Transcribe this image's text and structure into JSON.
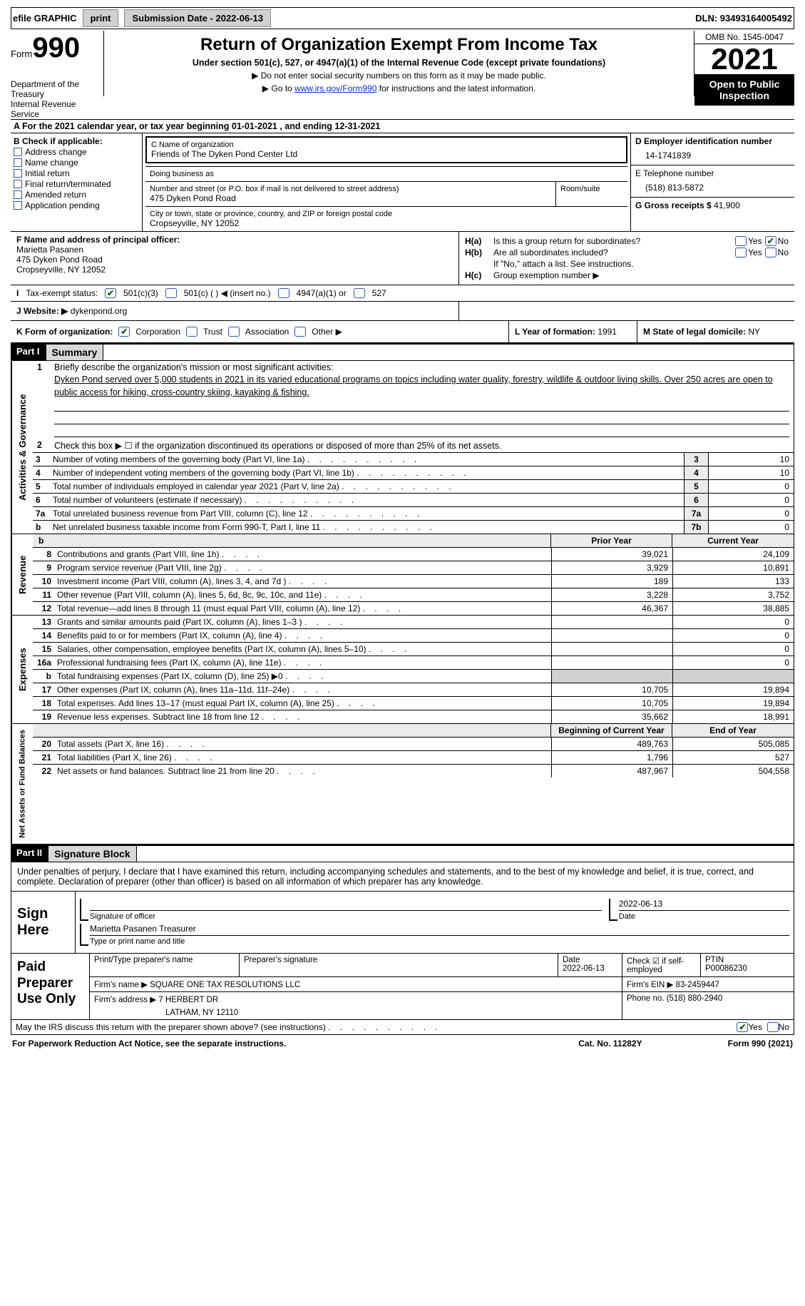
{
  "topbar": {
    "efile": "efile GRAPHIC",
    "print": "print",
    "subdate_label": "Submission Date - 2022-06-13",
    "dln": "DLN: 93493164005492"
  },
  "header": {
    "form_label": "Form",
    "form_num": "990",
    "title": "Return of Organization Exempt From Income Tax",
    "subtitle": "Under section 501(c), 527, or 4947(a)(1) of the Internal Revenue Code (except private foundations)",
    "note1": "▶ Do not enter social security numbers on this form as it may be made public.",
    "note2_pre": "▶ Go to ",
    "note2_link": "www.irs.gov/Form990",
    "note2_post": " for instructions and the latest information.",
    "dept": "Department of the Treasury\nInternal Revenue Service",
    "omb": "OMB No. 1545-0047",
    "year": "2021",
    "open": "Open to Public Inspection"
  },
  "rowA": "A For the 2021 calendar year, or tax year beginning 01-01-2021    , and ending 12-31-2021",
  "boxB": {
    "hdr": "B Check if applicable:",
    "items": [
      "Address change",
      "Name change",
      "Initial return",
      "Final return/terminated",
      "Amended return",
      "Application pending"
    ]
  },
  "boxC": {
    "name_label": "C Name of organization",
    "name": "Friends of The Dyken Pond Center Ltd",
    "dba_label": "Doing business as",
    "dba": "",
    "addr_label": "Number and street (or P.O. box if mail is not delivered to street address)",
    "addr": "475 Dyken Pond Road",
    "room_label": "Room/suite",
    "city_label": "City or town, state or province, country, and ZIP or foreign postal code",
    "city": "Cropseyville, NY  12052"
  },
  "boxD": {
    "label": "D Employer identification number",
    "val": "14-1741839"
  },
  "boxE": {
    "label": "E Telephone number",
    "val": "(518) 813-5872"
  },
  "boxG": {
    "label": "G Gross receipts $",
    "val": "41,900"
  },
  "boxF": {
    "label": "F  Name and address of principal officer:",
    "name": "Marietta Pasanen",
    "addr1": "475 Dyken Pond Road",
    "addr2": "Cropseyville, NY  12052"
  },
  "boxH": {
    "a_lbl": "H(a)",
    "a_txt": "Is this a group return for subordinates?",
    "b_lbl": "H(b)",
    "b_txt": "Are all subordinates included?",
    "b_note": "If \"No,\" attach a list. See instructions.",
    "c_lbl": "H(c)",
    "c_txt": "Group exemption number ▶",
    "yes": "Yes",
    "no": "No"
  },
  "taxI": {
    "label": "I",
    "txt": "Tax-exempt status:",
    "o1": "501(c)(3)",
    "o2": "501(c) (  ) ◀ (insert no.)",
    "o3": "4947(a)(1) or",
    "o4": "527"
  },
  "webJ": {
    "label": "J",
    "txt": "Website: ▶",
    "val": "dykenpond.org"
  },
  "rowK": {
    "label": "K Form of organization:",
    "o1": "Corporation",
    "o2": "Trust",
    "o3": "Association",
    "o4": "Other ▶"
  },
  "rowL": {
    "label": "L Year of formation:",
    "val": "1991"
  },
  "rowM": {
    "label": "M State of legal domicile:",
    "val": "NY"
  },
  "part1": {
    "num": "Part I",
    "title": "Summary"
  },
  "summary": {
    "tab1": "Activities & Governance",
    "l1": {
      "n": "1",
      "d": "Briefly describe the organization's mission or most significant activities:",
      "txt": "Dyken Pond served over 5,000 students in 2021 in its varied educational programs on topics including water quality, forestry, wildlife & outdoor living skills. Over 250 acres are open to public access for hiking, cross-country skiing, kayaking & fishing."
    },
    "l2": {
      "n": "2",
      "d": "Check this box ▶ ☐  if the organization discontinued its operations or disposed of more than 25% of its net assets."
    },
    "grid": [
      {
        "n": "3",
        "d": "Number of voting members of the governing body (Part VI, line 1a)",
        "b": "3",
        "v": "10"
      },
      {
        "n": "4",
        "d": "Number of independent voting members of the governing body (Part VI, line 1b)",
        "b": "4",
        "v": "10"
      },
      {
        "n": "5",
        "d": "Total number of individuals employed in calendar year 2021 (Part V, line 2a)",
        "b": "5",
        "v": "0"
      },
      {
        "n": "6",
        "d": "Total number of volunteers (estimate if necessary)",
        "b": "6",
        "v": "0"
      },
      {
        "n": "7a",
        "d": "Total unrelated business revenue from Part VIII, column (C), line 12",
        "b": "7a",
        "v": "0"
      },
      {
        "n": "b",
        "d": "Net unrelated business taxable income from Form 990-T, Part I, line 11",
        "b": "7b",
        "v": "0"
      }
    ]
  },
  "revenue": {
    "tab": "Revenue",
    "hdr_b": "b",
    "hdr_prior": "Prior Year",
    "hdr_curr": "Current Year",
    "lines": [
      {
        "n": "8",
        "d": "Contributions and grants (Part VIII, line 1h)",
        "p": "39,021",
        "c": "24,109"
      },
      {
        "n": "9",
        "d": "Program service revenue (Part VIII, line 2g)",
        "p": "3,929",
        "c": "10,891"
      },
      {
        "n": "10",
        "d": "Investment income (Part VIII, column (A), lines 3, 4, and 7d )",
        "p": "189",
        "c": "133"
      },
      {
        "n": "11",
        "d": "Other revenue (Part VIII, column (A), lines 5, 6d, 8c, 9c, 10c, and 11e)",
        "p": "3,228",
        "c": "3,752"
      },
      {
        "n": "12",
        "d": "Total revenue—add lines 8 through 11 (must equal Part VIII, column (A), line 12)",
        "p": "46,367",
        "c": "38,885"
      }
    ]
  },
  "expenses": {
    "tab": "Expenses",
    "lines": [
      {
        "n": "13",
        "d": "Grants and similar amounts paid (Part IX, column (A), lines 1–3 )",
        "p": "",
        "c": "0"
      },
      {
        "n": "14",
        "d": "Benefits paid to or for members (Part IX, column (A), line 4)",
        "p": "",
        "c": "0"
      },
      {
        "n": "15",
        "d": "Salaries, other compensation, employee benefits (Part IX, column (A), lines 5–10)",
        "p": "",
        "c": "0"
      },
      {
        "n": "16a",
        "d": "Professional fundraising fees (Part IX, column (A), line 11e)",
        "p": "",
        "c": "0"
      },
      {
        "n": "b",
        "d": "Total fundraising expenses (Part IX, column (D), line 25) ▶0",
        "p": "shade",
        "c": "shade"
      },
      {
        "n": "17",
        "d": "Other expenses (Part IX, column (A), lines 11a–11d, 11f–24e)",
        "p": "10,705",
        "c": "19,894"
      },
      {
        "n": "18",
        "d": "Total expenses. Add lines 13–17 (must equal Part IX, column (A), line 25)",
        "p": "10,705",
        "c": "19,894"
      },
      {
        "n": "19",
        "d": "Revenue less expenses. Subtract line 18 from line 12",
        "p": "35,662",
        "c": "18,991"
      }
    ]
  },
  "netassets": {
    "tab": "Net Assets or Fund Balances",
    "hdr_b": "Beginning of Current Year",
    "hdr_e": "End of Year",
    "lines": [
      {
        "n": "20",
        "d": "Total assets (Part X, line 16)",
        "p": "489,763",
        "c": "505,085"
      },
      {
        "n": "21",
        "d": "Total liabilities (Part X, line 26)",
        "p": "1,796",
        "c": "527"
      },
      {
        "n": "22",
        "d": "Net assets or fund balances. Subtract line 21 from line 20",
        "p": "487,967",
        "c": "504,558"
      }
    ]
  },
  "part2": {
    "num": "Part II",
    "title": "Signature Block"
  },
  "sig": {
    "intro": "Under penalties of perjury, I declare that I have examined this return, including accompanying schedules and statements, and to the best of my knowledge and belief, it is true, correct, and complete. Declaration of preparer (other than officer) is based on all information of which preparer has any knowledge.",
    "left": "Sign Here",
    "sig_label": "Signature of officer",
    "date_val": "2022-06-13",
    "date_label": "Date",
    "name_val": "Marietta Pasanen  Treasurer",
    "name_label": "Type or print name and title"
  },
  "prep": {
    "left": "Paid Preparer Use Only",
    "r1": {
      "c1_lbl": "Print/Type preparer's name",
      "c1": "",
      "c2_lbl": "Preparer's signature",
      "c3_lbl": "Date",
      "c3": "2022-06-13",
      "c4_lbl": "Check ☑ if self-employed",
      "c5_lbl": "PTIN",
      "c5": "P00086230"
    },
    "r2": {
      "c1_lbl": "Firm's name    ▶",
      "c1": "SQUARE ONE TAX RESOLUTIONS LLC",
      "c2_lbl": "Firm's EIN ▶",
      "c2": "83-2459447"
    },
    "r3": {
      "c1_lbl": "Firm's address ▶",
      "c1": "7 HERBERT DR",
      "c1b": "LATHAM, NY  12110",
      "c2_lbl": "Phone no.",
      "c2": "(518) 880-2940"
    }
  },
  "footer": {
    "q": "May the IRS discuss this return with the preparer shown above? (see instructions)",
    "yes": "Yes",
    "no": "No",
    "l": "For Paperwork Reduction Act Notice, see the separate instructions.",
    "m": "Cat. No. 11282Y",
    "r": "Form 990 (2021)"
  }
}
